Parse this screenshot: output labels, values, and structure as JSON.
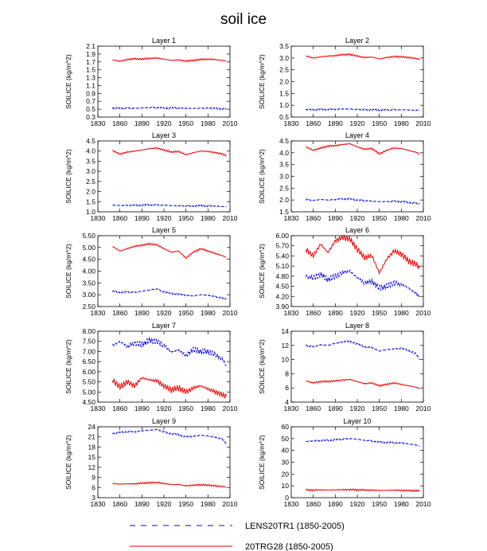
{
  "figure": {
    "title": "soil ice"
  },
  "colors": {
    "series_blue": "#0000ee",
    "series_red": "#ee0000"
  },
  "legend": [
    {
      "label": "LENS20TR1 (1850-2005)",
      "style": "dashed",
      "color": "#0000ee"
    },
    {
      "label": "20TRG28 (1850-2005)",
      "style": "solid",
      "color": "#ee0000"
    }
  ],
  "chart_data": [
    {
      "type": "line",
      "title": "Layer 1",
      "xlabel": "",
      "ylabel": "SOILICE  (kg/m^2)",
      "xlim": [
        1830,
        2010
      ],
      "xticks": [
        1830,
        1860,
        1890,
        1920,
        1950,
        1980,
        2010
      ],
      "ylim": [
        0.3,
        2.1
      ],
      "yticks": [
        "0.3",
        "0.5",
        "0.7",
        "0.9",
        "1.1",
        "1.3",
        "1.5",
        "1.7",
        "1.9",
        "2.1"
      ],
      "x": [
        1850,
        1860,
        1870,
        1880,
        1890,
        1900,
        1910,
        1920,
        1930,
        1940,
        1950,
        1960,
        1970,
        1980,
        1990,
        2000,
        2005
      ],
      "series": [
        {
          "name": "LENS20TR1 (1850-2005)",
          "style": "dashed",
          "values": [
            0.53,
            0.52,
            0.53,
            0.52,
            0.53,
            0.54,
            0.54,
            0.53,
            0.53,
            0.53,
            0.52,
            0.52,
            0.52,
            0.53,
            0.52,
            0.51,
            0.51
          ]
        },
        {
          "name": "20TRG28 (1850-2005)",
          "style": "solid",
          "values": [
            1.75,
            1.72,
            1.76,
            1.78,
            1.77,
            1.79,
            1.8,
            1.77,
            1.74,
            1.75,
            1.72,
            1.74,
            1.76,
            1.77,
            1.76,
            1.74,
            1.72
          ]
        }
      ]
    },
    {
      "type": "line",
      "title": "Layer 2",
      "xlabel": "",
      "ylabel": "SOILICE  (kg/m^2)",
      "xlim": [
        1830,
        2010
      ],
      "xticks": [
        1830,
        1860,
        1890,
        1920,
        1950,
        1980,
        2010
      ],
      "ylim": [
        0.5,
        3.5
      ],
      "yticks": [
        "0.5",
        "1.0",
        "1.5",
        "2.0",
        "2.5",
        "3.0",
        "3.5"
      ],
      "x": [
        1850,
        1860,
        1870,
        1880,
        1890,
        1900,
        1910,
        1920,
        1930,
        1940,
        1950,
        1960,
        1970,
        1980,
        1990,
        2000,
        2005
      ],
      "series": [
        {
          "name": "LENS20TR1 (1850-2005)",
          "style": "dashed",
          "values": [
            0.82,
            0.81,
            0.82,
            0.82,
            0.83,
            0.84,
            0.84,
            0.82,
            0.81,
            0.81,
            0.8,
            0.8,
            0.81,
            0.81,
            0.8,
            0.79,
            0.78
          ]
        },
        {
          "name": "20TRG28 (1850-2005)",
          "style": "solid",
          "values": [
            3.08,
            3.0,
            3.05,
            3.08,
            3.1,
            3.14,
            3.15,
            3.08,
            3.02,
            3.04,
            2.96,
            3.02,
            3.06,
            3.05,
            3.02,
            2.98,
            2.95
          ]
        }
      ]
    },
    {
      "type": "line",
      "title": "Layer 3",
      "xlabel": "",
      "ylabel": "SOILICE  (kg/m^2)",
      "xlim": [
        1830,
        2010
      ],
      "xticks": [
        1830,
        1860,
        1890,
        1920,
        1950,
        1980,
        2010
      ],
      "ylim": [
        1.0,
        4.5
      ],
      "yticks": [
        "1.0",
        "1.5",
        "2.0",
        "2.5",
        "3.0",
        "3.5",
        "4.0",
        "4.5"
      ],
      "x": [
        1850,
        1860,
        1870,
        1880,
        1890,
        1900,
        1910,
        1920,
        1930,
        1940,
        1950,
        1960,
        1970,
        1980,
        1990,
        2000,
        2005
      ],
      "series": [
        {
          "name": "LENS20TR1 (1850-2005)",
          "style": "dashed",
          "values": [
            1.33,
            1.31,
            1.32,
            1.32,
            1.33,
            1.34,
            1.34,
            1.32,
            1.31,
            1.3,
            1.29,
            1.29,
            1.3,
            1.29,
            1.28,
            1.26,
            1.25
          ]
        },
        {
          "name": "20TRG28 (1850-2005)",
          "style": "solid",
          "values": [
            4.02,
            3.85,
            3.95,
            4.0,
            4.05,
            4.12,
            4.15,
            4.05,
            3.95,
            3.98,
            3.82,
            3.92,
            4.0,
            3.98,
            3.92,
            3.85,
            3.78
          ]
        }
      ]
    },
    {
      "type": "line",
      "title": "Layer 4",
      "xlabel": "",
      "ylabel": "SOILICE  (kg/m^2)",
      "xlim": [
        1830,
        2010
      ],
      "xticks": [
        1830,
        1860,
        1890,
        1920,
        1950,
        1980,
        2010
      ],
      "ylim": [
        1.5,
        4.5
      ],
      "yticks": [
        "1.5",
        "2.0",
        "2.5",
        "3.0",
        "3.5",
        "4.0",
        "4.5"
      ],
      "x": [
        1850,
        1860,
        1870,
        1880,
        1890,
        1900,
        1910,
        1920,
        1930,
        1940,
        1950,
        1960,
        1970,
        1980,
        1990,
        2000,
        2005
      ],
      "series": [
        {
          "name": "LENS20TR1 (1850-2005)",
          "style": "dashed",
          "values": [
            2.02,
            1.98,
            2.02,
            2.0,
            2.02,
            2.05,
            2.04,
            2.0,
            1.97,
            1.95,
            1.93,
            1.93,
            1.95,
            1.93,
            1.9,
            1.86,
            1.83
          ]
        },
        {
          "name": "20TRG28 (1850-2005)",
          "style": "solid",
          "values": [
            4.25,
            4.1,
            4.2,
            4.28,
            4.3,
            4.35,
            4.38,
            4.25,
            4.15,
            4.18,
            3.95,
            4.1,
            4.2,
            4.18,
            4.1,
            4.02,
            3.95
          ]
        }
      ]
    },
    {
      "type": "line",
      "title": "Layer 5",
      "xlabel": "",
      "ylabel": "SOILICE  (kg/m^2)",
      "xlim": [
        1830,
        2010
      ],
      "xticks": [
        1830,
        1860,
        1890,
        1920,
        1950,
        1980,
        2010
      ],
      "ylim": [
        2.5,
        5.5
      ],
      "yticks": [
        "2.50",
        "3.00",
        "3.50",
        "4.00",
        "4.50",
        "5.00",
        "5.50"
      ],
      "x": [
        1850,
        1860,
        1870,
        1880,
        1890,
        1900,
        1910,
        1920,
        1930,
        1940,
        1950,
        1960,
        1970,
        1980,
        1990,
        2000,
        2005
      ],
      "series": [
        {
          "name": "LENS20TR1 (1850-2005)",
          "style": "dashed",
          "values": [
            3.15,
            3.1,
            3.12,
            3.1,
            3.15,
            3.2,
            3.25,
            3.12,
            3.05,
            3.02,
            2.98,
            2.95,
            3.0,
            2.98,
            2.92,
            2.85,
            2.8
          ]
        },
        {
          "name": "20TRG28 (1850-2005)",
          "style": "solid",
          "values": [
            5.05,
            4.85,
            4.95,
            5.05,
            5.1,
            5.15,
            5.12,
            4.95,
            4.8,
            4.85,
            4.55,
            4.8,
            4.95,
            4.85,
            4.75,
            4.65,
            4.58
          ]
        }
      ]
    },
    {
      "type": "line",
      "title": "Layer 6",
      "xlabel": "",
      "ylabel": "SOILICE  (kg/m^2)",
      "xlim": [
        1830,
        2010
      ],
      "xticks": [
        1830,
        1860,
        1890,
        1920,
        1950,
        1980,
        2010
      ],
      "ylim": [
        3.9,
        6.0
      ],
      "yticks": [
        "3.90",
        "4.20",
        "4.50",
        "4.80",
        "5.10",
        "5.40",
        "5.70",
        "6.00"
      ],
      "x": [
        1850,
        1860,
        1870,
        1880,
        1890,
        1900,
        1910,
        1920,
        1930,
        1940,
        1950,
        1960,
        1970,
        1980,
        1990,
        2000,
        2005
      ],
      "series": [
        {
          "name": "LENS20TR1 (1850-2005)",
          "style": "dashed",
          "values": [
            4.8,
            4.75,
            4.85,
            4.7,
            4.8,
            4.9,
            4.95,
            4.75,
            4.6,
            4.65,
            4.45,
            4.5,
            4.6,
            4.55,
            4.45,
            4.3,
            4.15
          ]
        },
        {
          "name": "20TRG28 (1850-2005)",
          "style": "solid",
          "values": [
            5.6,
            5.4,
            5.75,
            5.5,
            5.85,
            5.95,
            5.9,
            5.6,
            5.35,
            5.4,
            4.9,
            5.3,
            5.55,
            5.45,
            5.25,
            5.15,
            5.05
          ]
        }
      ]
    },
    {
      "type": "line",
      "title": "Layer 7",
      "xlabel": "",
      "ylabel": "SOILICE  (kg/m^2)",
      "xlim": [
        1830,
        2010
      ],
      "xticks": [
        1830,
        1860,
        1890,
        1920,
        1950,
        1980,
        2010
      ],
      "ylim": [
        4.5,
        8.0
      ],
      "yticks": [
        "4.50",
        "5.00",
        "5.50",
        "6.00",
        "6.50",
        "7.00",
        "7.50",
        "8.00"
      ],
      "x": [
        1850,
        1860,
        1870,
        1880,
        1890,
        1900,
        1910,
        1920,
        1930,
        1940,
        1950,
        1960,
        1970,
        1980,
        1990,
        2000,
        2005
      ],
      "series": [
        {
          "name": "LENS20TR1 (1850-2005)",
          "style": "dashed",
          "values": [
            7.3,
            7.5,
            7.25,
            7.4,
            7.35,
            7.55,
            7.5,
            7.3,
            7.0,
            7.05,
            6.8,
            7.1,
            7.0,
            7.0,
            6.85,
            6.6,
            6.3
          ]
        },
        {
          "name": "20TRG28 (1850-2005)",
          "style": "solid",
          "values": [
            5.6,
            5.25,
            5.5,
            5.3,
            5.7,
            5.6,
            5.55,
            5.3,
            5.1,
            5.2,
            5.0,
            5.2,
            5.3,
            5.15,
            5.0,
            4.85,
            4.8
          ]
        }
      ]
    },
    {
      "type": "line",
      "title": "Layer 8",
      "xlabel": "",
      "ylabel": "SOILICE  (kg/m^2)",
      "xlim": [
        1830,
        2010
      ],
      "xticks": [
        1830,
        1860,
        1890,
        1920,
        1950,
        1980,
        2010
      ],
      "ylim": [
        4,
        14
      ],
      "yticks": [
        "4",
        "6",
        "8",
        "10",
        "12",
        "14"
      ],
      "x": [
        1850,
        1860,
        1870,
        1880,
        1890,
        1900,
        1910,
        1920,
        1930,
        1940,
        1950,
        1960,
        1970,
        1980,
        1990,
        2000,
        2005
      ],
      "series": [
        {
          "name": "LENS20TR1 (1850-2005)",
          "style": "dashed",
          "values": [
            12.0,
            11.8,
            12.1,
            12.0,
            12.3,
            12.5,
            12.6,
            12.2,
            11.8,
            11.7,
            11.2,
            11.4,
            11.5,
            11.6,
            11.3,
            10.8,
            10.0
          ]
        },
        {
          "name": "20TRG28 (1850-2005)",
          "style": "solid",
          "values": [
            7.0,
            6.7,
            6.9,
            6.9,
            7.0,
            7.1,
            7.2,
            6.9,
            6.6,
            6.7,
            6.3,
            6.5,
            6.7,
            6.5,
            6.3,
            6.1,
            5.9
          ]
        }
      ]
    },
    {
      "type": "line",
      "title": "Layer 9",
      "xlabel": "",
      "ylabel": "SOILICE  (kg/m^2)",
      "xlim": [
        1830,
        2010
      ],
      "xticks": [
        1830,
        1860,
        1890,
        1920,
        1950,
        1980,
        2010
      ],
      "ylim": [
        3,
        24
      ],
      "yticks": [
        "3",
        "6",
        "9",
        "12",
        "15",
        "18",
        "21",
        "24"
      ],
      "x": [
        1850,
        1860,
        1870,
        1880,
        1890,
        1900,
        1910,
        1920,
        1930,
        1940,
        1950,
        1960,
        1970,
        1980,
        1990,
        2000,
        2005
      ],
      "series": [
        {
          "name": "LENS20TR1 (1850-2005)",
          "style": "dashed",
          "values": [
            22.0,
            22.3,
            22.6,
            22.5,
            22.8,
            23.0,
            23.2,
            22.5,
            21.9,
            21.7,
            21.0,
            21.2,
            21.5,
            21.3,
            20.9,
            20.3,
            19.0
          ]
        },
        {
          "name": "20TRG28 (1850-2005)",
          "style": "solid",
          "values": [
            7.2,
            7.0,
            7.1,
            7.1,
            7.3,
            7.4,
            7.5,
            7.2,
            6.9,
            6.9,
            6.5,
            6.7,
            6.8,
            6.7,
            6.5,
            6.3,
            6.1
          ]
        }
      ]
    },
    {
      "type": "line",
      "title": "Layer 10",
      "xlabel": "",
      "ylabel": "SOILICE  (kg/m^2)",
      "xlim": [
        1830,
        2010
      ],
      "xticks": [
        1830,
        1860,
        1890,
        1920,
        1950,
        1980,
        2010
      ],
      "ylim": [
        0,
        60
      ],
      "yticks": [
        "0",
        "10",
        "20",
        "30",
        "40",
        "50",
        "60"
      ],
      "x": [
        1850,
        1860,
        1870,
        1880,
        1890,
        1900,
        1910,
        1920,
        1930,
        1940,
        1950,
        1960,
        1970,
        1980,
        1990,
        2000,
        2005
      ],
      "series": [
        {
          "name": "LENS20TR1 (1850-2005)",
          "style": "dashed",
          "values": [
            47.5,
            48.0,
            48.3,
            48.5,
            49.0,
            49.5,
            50.0,
            49.5,
            48.5,
            48.0,
            47.0,
            46.8,
            46.5,
            46.3,
            45.5,
            44.5,
            43.5
          ]
        },
        {
          "name": "20TRG28 (1850-2005)",
          "style": "solid",
          "values": [
            6.5,
            6.4,
            6.5,
            6.5,
            6.6,
            6.7,
            6.8,
            6.6,
            6.4,
            6.4,
            6.1,
            6.2,
            6.3,
            6.2,
            6.0,
            5.9,
            5.8
          ]
        }
      ]
    }
  ]
}
